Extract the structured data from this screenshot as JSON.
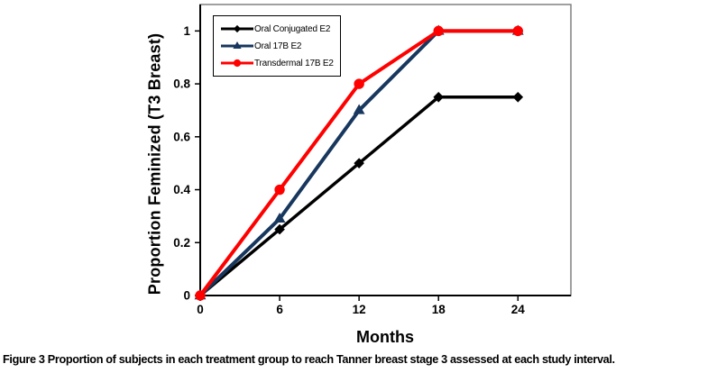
{
  "figure": {
    "caption_label": "Figure 3",
    "caption_text": "Proportion of subjects in each treatment group to reach Tanner breast stage 3 assessed at each study interval."
  },
  "chart_data": {
    "type": "line",
    "title": "",
    "xlabel": "Months",
    "ylabel": "Proportion Feminized (T3 Breast)",
    "x": [
      0,
      6,
      12,
      18,
      24
    ],
    "x_ticks": [
      0,
      6,
      12,
      18,
      24
    ],
    "y_ticks": [
      0,
      0.2,
      0.4,
      0.6,
      0.8,
      1
    ],
    "xlim": [
      0,
      28
    ],
    "ylim": [
      0,
      1.1
    ],
    "grid": false,
    "legend_position": "top-left-inside",
    "series": [
      {
        "name": "Oral Conjugated E2",
        "marker": "diamond",
        "color": "#000000",
        "values": [
          0,
          0.25,
          0.5,
          0.75,
          0.75
        ]
      },
      {
        "name": "Oral 17B E2",
        "marker": "triangle",
        "color": "#17375e",
        "values": [
          0,
          0.29,
          0.7,
          1.0,
          1.0
        ]
      },
      {
        "name": "Transdermal 17B E2",
        "marker": "circle",
        "color": "#ff0000",
        "values": [
          0,
          0.4,
          0.8,
          1.0,
          1.0
        ]
      }
    ],
    "axis_colors": {
      "box_border": "#808080",
      "axis_line": "#000000"
    }
  }
}
